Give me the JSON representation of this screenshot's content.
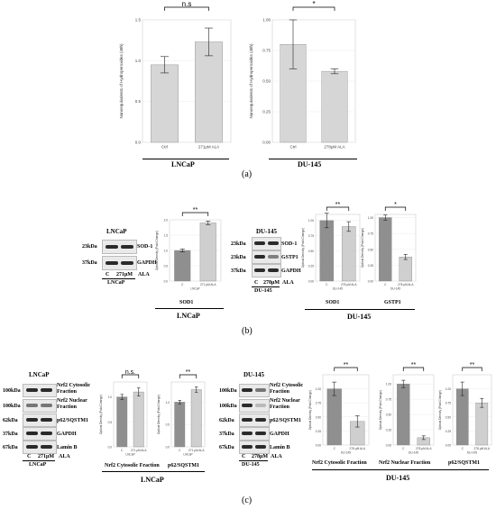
{
  "panel_a": {
    "label": "(a)",
    "lncap": {
      "cell_line": "LNCaP",
      "ylabel": "Nanoequivalents of Hydroperoxides (48h)",
      "sig": "n.s"
    },
    "du145": {
      "cell_line": "DU-145",
      "ylabel": "Nanoequivalents of Hydroperoxides (48h)",
      "sig": "*"
    }
  },
  "panel_b": {
    "label": "(b)",
    "lncap_blot": {
      "title": "LNCaP",
      "markers": [
        "23kDa",
        "37kDa"
      ],
      "proteins": [
        "SOD-1",
        "GAPDH"
      ],
      "lanes": [
        "C",
        "271μM",
        "ALA"
      ],
      "footer": "LNCaP"
    },
    "lncap_chart_name": "SOD1",
    "lncap_group": "LNCaP",
    "du_blot": {
      "title": "DU-145",
      "markers": [
        "23kDa",
        "23kDa",
        "37kDa"
      ],
      "proteins": [
        "SOD-1",
        "GSTP1",
        "GAPDH"
      ],
      "lanes": [
        "C",
        "278μM",
        "ALA"
      ],
      "footer": "DU-145"
    },
    "du_chart_names": [
      "SOD1",
      "GSTP1"
    ],
    "du_group": "DU-145",
    "sig_lncap": "**",
    "sig_du_sod1": "**",
    "sig_du_gstp1": "*"
  },
  "panel_c": {
    "label": "(c)",
    "lncap_blot": {
      "title": "LNCaP",
      "markers": [
        "100kDa",
        "100kDa",
        "62kDa",
        "37kDa",
        "67kDa"
      ],
      "proteins": [
        "Nrf2 Cytosolic Fraction",
        "Nrf2 Nuclear Fraction",
        "p62/SQSTM1",
        "GAPDH",
        "Lamin B"
      ],
      "lanes": [
        "C",
        "271μM",
        "ALA"
      ],
      "footer": "LNCaP"
    },
    "lncap_chart_names": [
      "Nrf2 Cytosolic Fraction",
      "p62/SQSTM1"
    ],
    "lncap_group": "LNCaP",
    "du_blot": {
      "title": "DU-145",
      "markers": [
        "100kDa",
        "100kDa",
        "62kDa",
        "37kDa",
        "67kDa"
      ],
      "proteins": [
        "Nrf2 Cytosolic Fraction",
        "Nrf2 Nuclear Fraction",
        "p62/SQSTM1",
        "GAPDH",
        "Lamin B"
      ],
      "lanes": [
        "C",
        "278μM",
        "ALA"
      ],
      "footer": "DU-145"
    },
    "du_chart_names": [
      "Nrf2 Cytosolic Fraction",
      "Nrf2 Nuclear Fraction",
      "p62/SQSTM1"
    ],
    "du_group": "DU-145",
    "sigs": [
      "n.s.",
      "**",
      "**",
      "**",
      "**"
    ]
  },
  "chart_data": [
    {
      "type": "bar",
      "panel": "a-LNCaP",
      "categories": [
        "Ctrl",
        "271μM ALA"
      ],
      "values": [
        0.95,
        1.23
      ],
      "errors": [
        0.1,
        0.17
      ],
      "ylim": [
        0,
        1.5
      ],
      "ticks": [
        "0.0",
        "0.5",
        "1.0",
        "1.5"
      ],
      "ylabel": "Nanoequivalents of Hydroperoxides (48h)",
      "colors": [
        "#d6d6d6",
        "#d6d6d6"
      ]
    },
    {
      "type": "bar",
      "panel": "a-DU-145",
      "categories": [
        "Ctrl",
        "278μM ALA"
      ],
      "values": [
        0.8,
        0.58
      ],
      "errors": [
        0.2,
        0.02
      ],
      "ylim": [
        0,
        1.0
      ],
      "ticks": [
        "0.00",
        "0.25",
        "0.50",
        "0.75",
        "1.00"
      ],
      "ylabel": "Nanoequivalents of Hydroperoxides (48h)",
      "colors": [
        "#d6d6d6",
        "#d6d6d6"
      ]
    },
    {
      "type": "bar",
      "panel": "b-SOD1-LNCaP",
      "categories": [
        "C",
        "271 μM ALA"
      ],
      "values": [
        1.0,
        1.9
      ],
      "errors": [
        0.05,
        0.06
      ],
      "ylim": [
        0,
        2.0
      ],
      "ticks": [
        "0.0",
        "0.5",
        "1.0",
        "1.5",
        "2.0"
      ],
      "ylabel": "Optical Density (Fold Change)",
      "xlabel": "LNCaP",
      "colors": [
        "#8f8f8f",
        "#cfcfcf"
      ]
    },
    {
      "type": "bar",
      "panel": "b-SOD1-DU-145",
      "categories": [
        "C",
        "278 μM ALA"
      ],
      "values": [
        1.0,
        0.9
      ],
      "errors": [
        0.12,
        0.08
      ],
      "ylim": [
        0,
        1.1
      ],
      "ticks": [
        "0.00",
        "0.25",
        "0.50",
        "0.75",
        "1.00"
      ],
      "ylabel": "Optical Density (Fold Change)",
      "xlabel": "DU-145",
      "colors": [
        "#8f8f8f",
        "#cfcfcf"
      ]
    },
    {
      "type": "bar",
      "panel": "b-GSTP1-DU-145",
      "categories": [
        "C",
        "278 μM ALA"
      ],
      "values": [
        1.0,
        0.38
      ],
      "errors": [
        0.04,
        0.04
      ],
      "ylim": [
        0,
        1.05
      ],
      "ticks": [
        "0.00",
        "0.25",
        "0.50",
        "0.75",
        "1.00"
      ],
      "ylabel": "Optical Density (Fold Change)",
      "xlabel": "DU-145",
      "colors": [
        "#8f8f8f",
        "#cfcfcf"
      ]
    },
    {
      "type": "bar",
      "panel": "c-Nrf2Cyto-LNCaP",
      "categories": [
        "C",
        "271 μM ALA"
      ],
      "values": [
        1.0,
        1.1
      ],
      "errors": [
        0.05,
        0.08
      ],
      "ylim": [
        0,
        1.3
      ],
      "ticks": [
        "0.0",
        "0.5",
        "1.0"
      ],
      "ylabel": "Optical Density (Fold Change)",
      "xlabel": "LNCaP",
      "colors": [
        "#8f8f8f",
        "#cfcfcf"
      ]
    },
    {
      "type": "bar",
      "panel": "c-p62-LNCaP",
      "categories": [
        "C",
        "271 μM ALA"
      ],
      "values": [
        1.0,
        1.28
      ],
      "errors": [
        0.04,
        0.06
      ],
      "ylim": [
        0,
        1.45
      ],
      "ticks": [
        "0.0",
        "0.5",
        "1.0"
      ],
      "ylabel": "Optical Density (Fold Change)",
      "xlabel": "LNCaP",
      "colors": [
        "#8f8f8f",
        "#cfcfcf"
      ]
    },
    {
      "type": "bar",
      "panel": "c-Nrf2Cyto-DU-145",
      "categories": [
        "C",
        "278 μM ALA"
      ],
      "values": [
        1.0,
        0.42
      ],
      "errors": [
        0.12,
        0.1
      ],
      "ylim": [
        0,
        1.25
      ],
      "ticks": [
        "0.00",
        "0.25",
        "0.50",
        "0.75",
        "1.00"
      ],
      "ylabel": "Optical Density (Fold Change)",
      "xlabel": "DU-145",
      "colors": [
        "#8f8f8f",
        "#cfcfcf"
      ]
    },
    {
      "type": "bar",
      "panel": "c-Nrf2Nuc-DU-145",
      "categories": [
        "C",
        "278 μM ALA"
      ],
      "values": [
        1.0,
        0.12
      ],
      "errors": [
        0.06,
        0.03
      ],
      "ylim": [
        0,
        1.15
      ],
      "ticks": [
        "0.00",
        "0.25",
        "0.50",
        "0.75",
        "1.00"
      ],
      "ylabel": "Optical Density (Fold Change)",
      "xlabel": "DU-145",
      "colors": [
        "#8f8f8f",
        "#cfcfcf"
      ]
    },
    {
      "type": "bar",
      "panel": "c-p62-DU-145",
      "categories": [
        "C",
        "278 μM ALA"
      ],
      "values": [
        1.0,
        0.75
      ],
      "errors": [
        0.12,
        0.08
      ],
      "ylim": [
        0,
        1.25
      ],
      "ticks": [
        "0.00",
        "0.25",
        "0.50",
        "0.75",
        "1.00"
      ],
      "ylabel": "Optical Density (Fold Change)",
      "xlabel": "DU-145",
      "colors": [
        "#8f8f8f",
        "#cfcfcf"
      ]
    }
  ]
}
